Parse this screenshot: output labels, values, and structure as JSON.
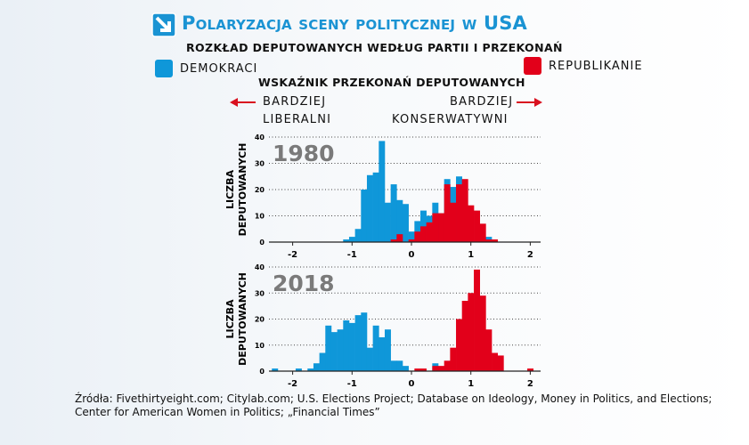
{
  "header": {
    "title": "Polaryzacja sceny politycznej w USA",
    "subtitle": "ROZKŁAD DEPUTOWANYCH WEDŁUG PARTII I PRZEKONAŃ",
    "logo_icon": "arrow-down-right-icon"
  },
  "legend": {
    "democrats": "DEMOKRACI",
    "republicans": "REPUBLIKANIE"
  },
  "colors": {
    "democrats": "#0f97d9",
    "republicans": "#e2001a",
    "title": "#1a93d3",
    "arrow": "#d9101f"
  },
  "axis": {
    "title": "WSKAŹNIK PRZEKONAŃ DEPUTOWANYCH",
    "left_line1": "BARDZIEJ",
    "left_line2": "LIBERALNI",
    "right_line1": "BARDZIEJ",
    "right_line2": "KONSERWATYWNI"
  },
  "source": "Źródła: Fivethirtyeight.com; Citylab.com; U.S. Elections Project; Database on Ideology, Money in Politics, and Elections; Center for American Women in Politics; „Financial Times”",
  "chart_data": [
    {
      "type": "bar",
      "label": "1980",
      "ylabel": "LICZBA DEPUTOWANYCH",
      "xlim": [
        -2.35,
        2.15
      ],
      "ylim": [
        0,
        40
      ],
      "xticks": [
        -2,
        -1,
        0,
        1,
        2
      ],
      "yticks": [
        0,
        10,
        20,
        30,
        40
      ],
      "grid": "horizontal-dotted",
      "bin_width": 0.1,
      "series": [
        {
          "name": "DEMOKRACI",
          "x": [
            -1.1,
            -1.0,
            -0.9,
            -0.8,
            -0.7,
            -0.6,
            -0.5,
            -0.4,
            -0.3,
            -0.2,
            -0.1,
            0.0,
            0.1,
            0.2,
            0.3,
            0.4,
            0.5,
            0.6,
            0.7,
            0.8,
            1.3
          ],
          "values": [
            1,
            2,
            5,
            20,
            25.5,
            26.5,
            38.5,
            15,
            22,
            16,
            14.5,
            4,
            8,
            12,
            10,
            15,
            11,
            24,
            21,
            25,
            2
          ]
        },
        {
          "name": "REPUBLIKANIE",
          "x": [
            -0.3,
            -0.2,
            0.0,
            0.1,
            0.2,
            0.3,
            0.4,
            0.5,
            0.6,
            0.7,
            0.8,
            0.9,
            1.0,
            1.1,
            1.2,
            1.3,
            1.4
          ],
          "values": [
            1,
            3,
            1,
            4,
            6,
            7.5,
            11,
            11,
            22,
            15,
            22,
            24,
            14,
            12,
            7,
            1,
            1
          ]
        }
      ]
    },
    {
      "type": "bar",
      "label": "2018",
      "ylabel": "LICZBA DEPUTOWANYCH",
      "xlim": [
        -2.35,
        2.15
      ],
      "ylim": [
        0,
        40
      ],
      "xticks": [
        -2,
        -1,
        0,
        1,
        2
      ],
      "yticks": [
        0,
        10,
        20,
        30,
        40
      ],
      "grid": "horizontal-dotted",
      "bin_width": 0.1,
      "series": [
        {
          "name": "DEMOKRACI",
          "x": [
            -2.3,
            -1.9,
            -1.7,
            -1.6,
            -1.5,
            -1.4,
            -1.3,
            -1.2,
            -1.1,
            -1.0,
            -0.9,
            -0.8,
            -0.7,
            -0.6,
            -0.5,
            -0.4,
            -0.3,
            -0.2,
            -0.1,
            0.4
          ],
          "values": [
            1,
            1,
            1,
            3,
            7,
            17.5,
            15,
            16,
            19.5,
            18.5,
            21.5,
            22.5,
            9,
            17.5,
            13,
            16,
            4,
            4,
            2,
            3
          ]
        },
        {
          "name": "REPUBLIKANIE",
          "x": [
            0.1,
            0.2,
            0.4,
            0.5,
            0.6,
            0.7,
            0.8,
            0.9,
            1.0,
            1.1,
            1.2,
            1.3,
            1.4,
            1.5,
            2.0
          ],
          "values": [
            1,
            1,
            2,
            2,
            4,
            9,
            20,
            27,
            30,
            39,
            29,
            16,
            7,
            6,
            1
          ]
        }
      ]
    }
  ]
}
